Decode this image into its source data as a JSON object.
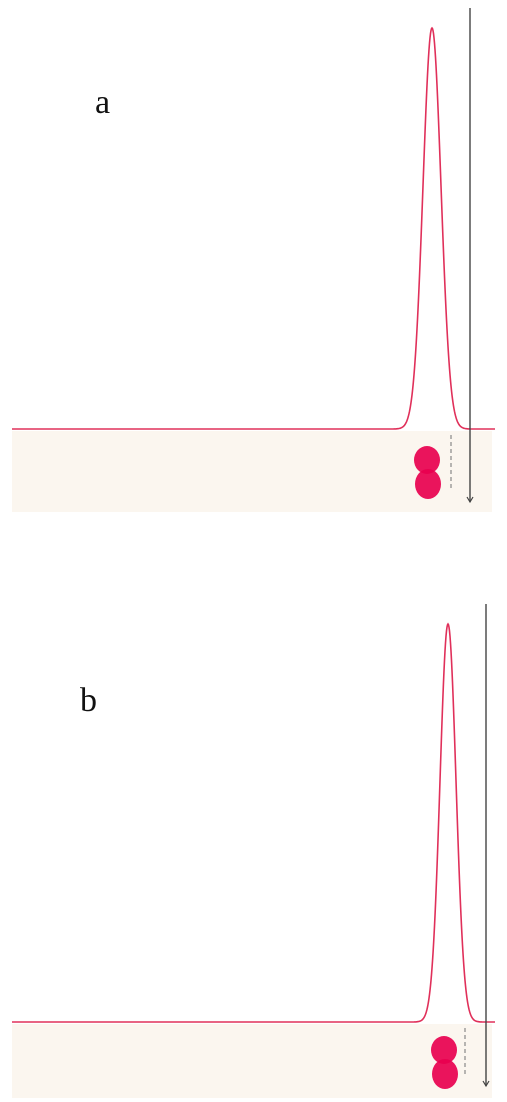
{
  "chart_data": [
    {
      "type": "line",
      "panel_label": "a",
      "peaks": [
        {
          "center": 432,
          "height": 1.0,
          "width": 9
        }
      ],
      "x": [
        0,
        507
      ],
      "colors": {
        "trace": "#e0305a",
        "spot": "#e8004f",
        "marker": "#444444",
        "strip": "#fbf6ef"
      },
      "grid": false,
      "title": "",
      "xlabel": "",
      "ylabel": ""
    },
    {
      "type": "line",
      "panel_label": "b",
      "peaks": [
        {
          "center": 448,
          "height": 1.0,
          "width": 8
        }
      ],
      "x": [
        0,
        507
      ],
      "colors": {
        "trace": "#e0305a",
        "spot": "#e8004f",
        "marker": "#444444",
        "strip": "#fbf6ef"
      },
      "grid": false,
      "title": "",
      "xlabel": "",
      "ylabel": ""
    }
  ]
}
